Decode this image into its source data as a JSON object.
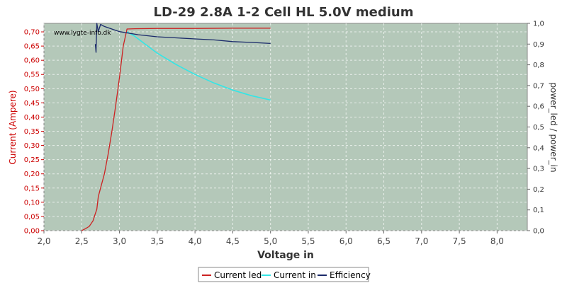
{
  "chart_data": {
    "type": "line",
    "title": "LD-29 2.8A 1-2 Cell HL 5.0V medium",
    "watermark": "www.lygte-info.dk",
    "xlabel": "Voltage in",
    "ylabel_left": "Current (Ampere)",
    "ylabel_right": "power_led / power_in",
    "xlim": [
      2.0,
      8.4
    ],
    "ylim_left": [
      0.0,
      0.73
    ],
    "ylim_right": [
      0.0,
      1.0
    ],
    "x_ticks": [
      "2,0",
      "2,5",
      "3,0",
      "3,5",
      "4,0",
      "4,5",
      "5,0",
      "5,5",
      "6,0",
      "6,5",
      "7,0",
      "7,5",
      "8,0"
    ],
    "y_left_ticks": [
      "0,00",
      "0,05",
      "0,10",
      "0,15",
      "0,20",
      "0,25",
      "0,30",
      "0,35",
      "0,40",
      "0,45",
      "0,50",
      "0,55",
      "0,60",
      "0,65",
      "0,70"
    ],
    "y_right_ticks": [
      "0,0",
      "0,1",
      "0,2",
      "0,3",
      "0,4",
      "0,5",
      "0,6",
      "0,7",
      "0,8",
      "0,9",
      "1,0"
    ],
    "grid": true,
    "legend_position": "bottom-center",
    "colors": {
      "plot_bg": "#b4c8b9",
      "current_led": "#cc2222",
      "current_in": "#33e6e6",
      "efficiency": "#1a2a6a"
    },
    "series": [
      {
        "name": "Current led",
        "axis": "left",
        "x": [
          2.5,
          2.55,
          2.6,
          2.65,
          2.68,
          2.7,
          2.72,
          2.75,
          2.8,
          2.85,
          2.9,
          2.95,
          3.0,
          3.05,
          3.1,
          3.2,
          3.5,
          4.0,
          4.5,
          5.0
        ],
        "y": [
          0.0,
          0.007,
          0.015,
          0.035,
          0.06,
          0.075,
          0.12,
          0.15,
          0.2,
          0.27,
          0.35,
          0.44,
          0.54,
          0.65,
          0.71,
          0.711,
          0.712,
          0.712,
          0.713,
          0.713
        ]
      },
      {
        "name": "Current in",
        "axis": "left",
        "x": [
          3.1,
          3.2,
          3.3,
          3.5,
          3.75,
          4.0,
          4.25,
          4.5,
          4.75,
          5.0
        ],
        "y": [
          0.7,
          0.685,
          0.665,
          0.625,
          0.585,
          0.55,
          0.52,
          0.495,
          0.475,
          0.46
        ]
      },
      {
        "name": "Efficiency",
        "axis": "right",
        "x": [
          2.68,
          2.69,
          2.7,
          2.72,
          2.75,
          2.8,
          3.0,
          3.25,
          3.5,
          3.75,
          4.0,
          4.25,
          4.5,
          4.75,
          5.0
        ],
        "y": [
          0.9,
          0.86,
          1.0,
          0.96,
          0.995,
          0.985,
          0.96,
          0.945,
          0.935,
          0.93,
          0.925,
          0.92,
          0.912,
          0.908,
          0.903
        ]
      }
    ]
  }
}
